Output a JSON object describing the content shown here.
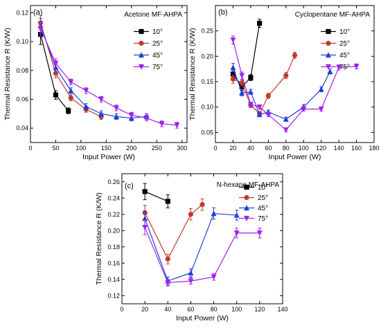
{
  "chart_data": [
    {
      "type": "line",
      "panel_label": "(a)",
      "title": "Acetone MF-AHPA",
      "xlabel": "Input Power (W)",
      "ylabel": "Thermal Resistance R (K/W)",
      "xlim": [
        0,
        310
      ],
      "ylim": [
        0.03,
        0.125
      ],
      "xticks": [
        0,
        50,
        100,
        150,
        200,
        250,
        300
      ],
      "yticks": [
        0.04,
        0.06,
        0.08,
        0.1,
        0.12
      ],
      "ytick_labels": [
        "0.04",
        "0.06",
        "0.08",
        "0.10",
        "0.12"
      ],
      "legend_position": "top-right",
      "legend_title": "",
      "series": [
        {
          "name": "10°",
          "color": "#000000",
          "marker": "square",
          "x": [
            20,
            50,
            75
          ],
          "y": [
            0.105,
            0.063,
            0.052
          ],
          "err": [
            0.007,
            0.003,
            0.002
          ]
        },
        {
          "name": "25°",
          "color": "#c0392b",
          "marker": "circle",
          "x": [
            20,
            50,
            80,
            110,
            140
          ],
          "y": [
            0.113,
            0.078,
            0.061,
            0.053,
            0.048
          ],
          "err": [
            0.005,
            0.003,
            0.002,
            0.002,
            0.002
          ]
        },
        {
          "name": "45°",
          "color": "#1f3fd6",
          "marker": "triangle-up",
          "x": [
            20,
            50,
            80,
            110,
            140,
            170,
            200,
            230
          ],
          "y": [
            0.111,
            0.082,
            0.066,
            0.055,
            0.05,
            0.048,
            0.047,
            0.048
          ],
          "err": [
            0.005,
            0.003,
            0.002,
            0.002,
            0.002,
            0.002,
            0.002,
            0.002
          ]
        },
        {
          "name": "75°",
          "color": "#a020f0",
          "marker": "triangle-down",
          "x": [
            20,
            50,
            80,
            110,
            140,
            170,
            200,
            230,
            260,
            290
          ],
          "y": [
            0.109,
            0.085,
            0.072,
            0.066,
            0.06,
            0.054,
            0.049,
            0.047,
            0.043,
            0.042
          ],
          "err": [
            0.005,
            0.003,
            0.002,
            0.002,
            0.002,
            0.002,
            0.002,
            0.002,
            0.002,
            0.002
          ]
        }
      ]
    },
    {
      "type": "line",
      "panel_label": "(b)",
      "title": "Cyclopentane MF-AHPA",
      "xlabel": "Input Power (W)",
      "ylabel": "Thermal Resistance R (K/W)",
      "xlim": [
        0,
        180
      ],
      "ylim": [
        0.03,
        0.3
      ],
      "xticks": [
        0,
        20,
        40,
        60,
        80,
        100,
        120,
        140,
        160,
        180
      ],
      "yticks": [
        0.05,
        0.1,
        0.15,
        0.2,
        0.25
      ],
      "ytick_labels": [
        "0.05",
        "0.10",
        "0.15",
        "0.20",
        "0.25"
      ],
      "legend_position": "top-right",
      "legend_title": "",
      "series": [
        {
          "name": "10°",
          "color": "#000000",
          "marker": "square",
          "x": [
            20,
            30,
            40,
            50
          ],
          "y": [
            0.165,
            0.14,
            0.158,
            0.265
          ],
          "err": [
            0.008,
            0.008,
            0.006,
            0.008
          ]
        },
        {
          "name": "25°",
          "color": "#c0392b",
          "marker": "circle",
          "x": [
            20,
            30,
            40,
            50,
            60,
            80,
            90
          ],
          "y": [
            0.155,
            0.148,
            0.104,
            0.087,
            0.122,
            0.162,
            0.202
          ],
          "err": [
            0.008,
            0.006,
            0.005,
            0.004,
            0.005,
            0.006,
            0.006
          ]
        },
        {
          "name": "45°",
          "color": "#1f3fd6",
          "marker": "triangle-up",
          "x": [
            20,
            30,
            40,
            50,
            60,
            80,
            100,
            120,
            130
          ],
          "y": [
            0.178,
            0.128,
            0.13,
            0.085,
            0.09,
            0.076,
            0.1,
            0.135,
            0.17
          ],
          "err": [
            0.008,
            0.006,
            0.005,
            0.004,
            0.004,
            0.004,
            0.005,
            0.005,
            0.005
          ]
        },
        {
          "name": "75°",
          "color": "#a020f0",
          "marker": "triangle-down",
          "x": [
            20,
            30,
            40,
            50,
            60,
            80,
            100,
            120,
            140,
            160
          ],
          "y": [
            0.232,
            0.162,
            0.105,
            0.1,
            0.085,
            0.055,
            0.096,
            0.096,
            0.178,
            0.18
          ],
          "err": [
            0.008,
            0.007,
            0.005,
            0.004,
            0.004,
            0.004,
            0.004,
            0.004,
            0.005,
            0.005
          ]
        }
      ]
    },
    {
      "type": "line",
      "panel_label": "(c)",
      "title": "N-hexane MF-AHPA",
      "xlabel": "Input Power (W)",
      "ylabel": "Thermal Resistance R (K/W)",
      "xlim": [
        0,
        140
      ],
      "ylim": [
        0.11,
        0.27
      ],
      "xticks": [
        0,
        20,
        40,
        60,
        80,
        100,
        120,
        140
      ],
      "yticks": [
        0.12,
        0.14,
        0.16,
        0.18,
        0.2,
        0.22,
        0.24,
        0.26
      ],
      "ytick_labels": [
        "0.12",
        "0.14",
        "0.16",
        "0.18",
        "0.20",
        "0.22",
        "0.24",
        "0.26"
      ],
      "legend_position": "top-right",
      "legend_title": "",
      "series": [
        {
          "name": "10°",
          "color": "#000000",
          "marker": "square",
          "x": [
            20,
            40
          ],
          "y": [
            0.248,
            0.236
          ],
          "err": [
            0.01,
            0.008
          ]
        },
        {
          "name": "25°",
          "color": "#c0392b",
          "marker": "circle",
          "x": [
            20,
            40,
            60,
            70
          ],
          "y": [
            0.222,
            0.165,
            0.22,
            0.232
          ],
          "err": [
            0.009,
            0.006,
            0.007,
            0.007
          ]
        },
        {
          "name": "45°",
          "color": "#1f3fd6",
          "marker": "triangle-up",
          "x": [
            20,
            40,
            60,
            80,
            100
          ],
          "y": [
            0.215,
            0.138,
            0.148,
            0.221,
            0.219
          ],
          "err": [
            0.009,
            0.005,
            0.005,
            0.007,
            0.006
          ]
        },
        {
          "name": "75°",
          "color": "#a020f0",
          "marker": "triangle-down",
          "x": [
            20,
            40,
            60,
            80,
            100,
            120
          ],
          "y": [
            0.204,
            0.136,
            0.138,
            0.143,
            0.197,
            0.197
          ],
          "err": [
            0.009,
            0.004,
            0.004,
            0.004,
            0.006,
            0.006
          ]
        }
      ]
    }
  ]
}
